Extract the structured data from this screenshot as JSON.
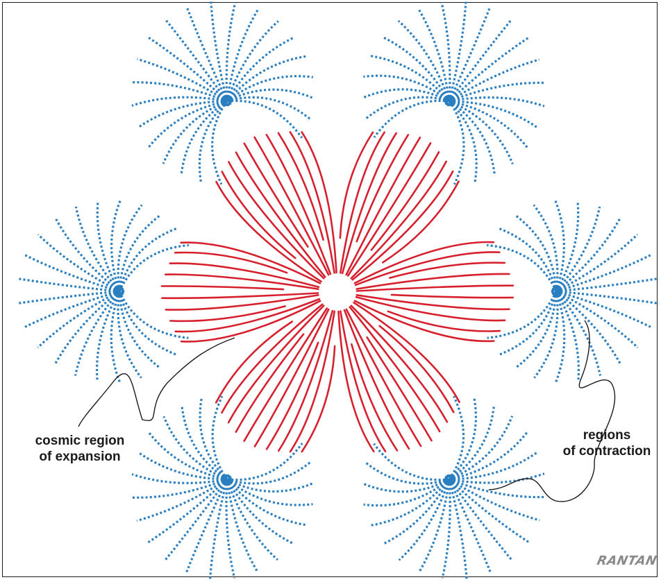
{
  "annotations": {
    "expansion": [
      "cosmic region",
      "of expansion"
    ],
    "contraction": [
      "regions",
      "of contraction"
    ]
  },
  "signature": "RANTAN",
  "colors": {
    "expansion_lines": "#d7202e",
    "contraction_lines": "#2a7fc1",
    "leader_lines": "#1a1a1a",
    "frame": "#1a1a1a"
  },
  "diagram": {
    "contraction_nodes": 6,
    "expansion_center": "central hole",
    "expansion_style": "solid",
    "contraction_style": "dotted"
  }
}
